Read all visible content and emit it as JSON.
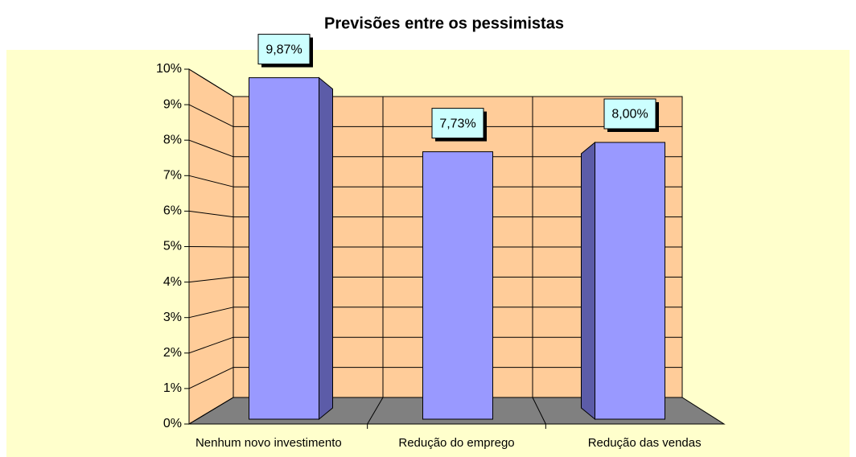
{
  "chart_data": {
    "type": "bar3d",
    "title": "Previsões entre os pessimistas",
    "categories": [
      "Nenhum novo investimento",
      "Redução do emprego",
      "Redução das vendas"
    ],
    "values": [
      9.87,
      7.73,
      8.0
    ],
    "value_labels": [
      "9,87%",
      "7,73%",
      "8,00%"
    ],
    "color": "#9999ff",
    "ylim": [
      0,
      10
    ],
    "yticks": [
      {
        "value": 0,
        "label": "0%"
      },
      {
        "value": 1,
        "label": "1%"
      },
      {
        "value": 2,
        "label": "2%"
      },
      {
        "value": 3,
        "label": "3%"
      },
      {
        "value": 4,
        "label": "4%"
      },
      {
        "value": 5,
        "label": "5%"
      },
      {
        "value": 6,
        "label": "6%"
      },
      {
        "value": 7,
        "label": "7%"
      },
      {
        "value": 8,
        "label": "8%"
      },
      {
        "value": 9,
        "label": "9%"
      },
      {
        "value": 10,
        "label": "10%"
      }
    ],
    "grid": true
  }
}
